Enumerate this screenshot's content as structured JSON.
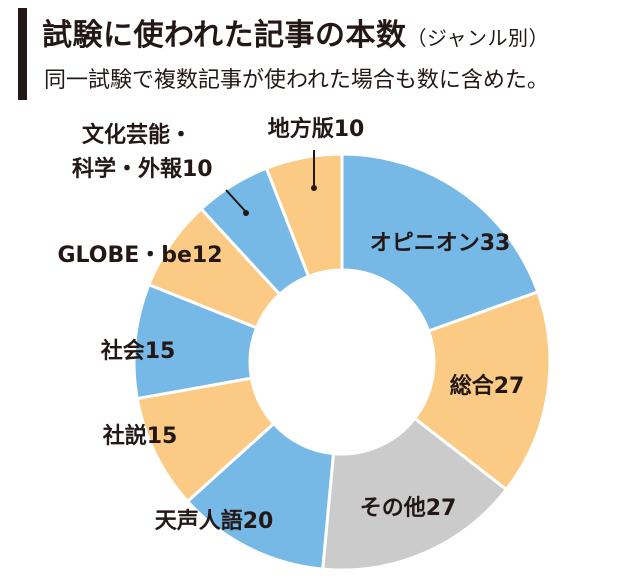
{
  "header": {
    "title": "試験に使われた記事の本数",
    "title_note": "（ジャンル別）",
    "subtitle": "同一試験で複数記事が使われた場合も数に含めた。"
  },
  "colors": {
    "blue": "#76b9e6",
    "orange": "#fbcb86",
    "gray": "#cbcbcb",
    "stroke": "#ffffff",
    "text": "#231815"
  },
  "chart_data": {
    "type": "pie",
    "donut": true,
    "title": "試験に使われた記事の本数",
    "subtitle": "同一試験で複数記事が使われた場合も数に含めた。",
    "slices": [
      {
        "name": "オピニオン",
        "value": 33,
        "label": "オピニオン33",
        "color": "blue"
      },
      {
        "name": "総合",
        "value": 27,
        "label": "総合27",
        "color": "orange"
      },
      {
        "name": "その他",
        "value": 27,
        "label": "その他27",
        "color": "gray"
      },
      {
        "name": "天声人語",
        "value": 20,
        "label": "天声人語20",
        "color": "blue"
      },
      {
        "name": "社説",
        "value": 15,
        "label": "社説15",
        "color": "orange"
      },
      {
        "name": "社会",
        "value": 15,
        "label": "社会15",
        "color": "blue"
      },
      {
        "name": "GLOBE・be",
        "value": 12,
        "label": "GLOBE・be12",
        "color": "orange"
      },
      {
        "name": "文化芸能・科学・外報",
        "value": 10,
        "label_lines": [
          "文化芸能・",
          "科学・外報10"
        ],
        "color": "blue"
      },
      {
        "name": "地方版",
        "value": 10,
        "label": "地方版10",
        "color": "orange"
      }
    ]
  }
}
